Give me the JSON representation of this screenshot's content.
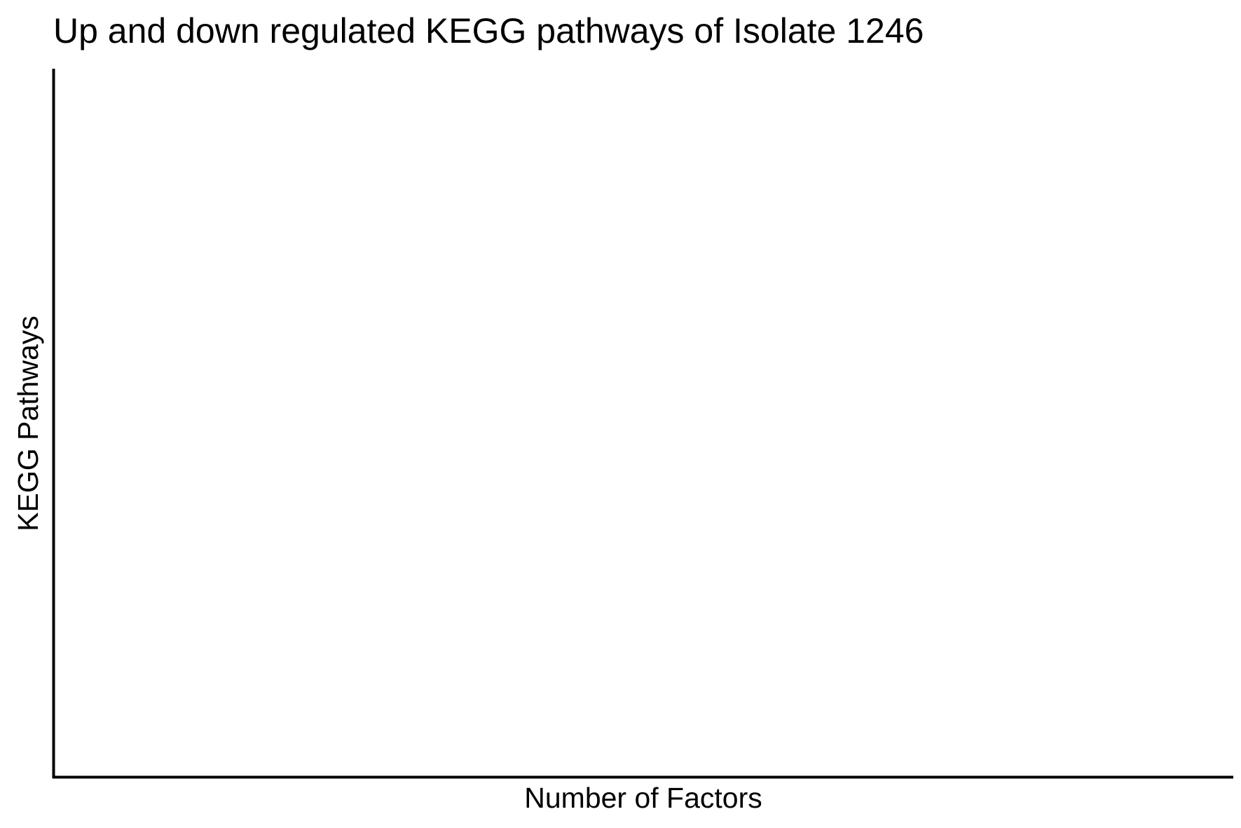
{
  "chart_data": {
    "type": "bar",
    "title": "Up and down regulated KEGG pathways of Isolate 1246",
    "xlabel": "Number of Factors",
    "ylabel": "KEGG Pathways",
    "categories": [],
    "series": [],
    "grid": false,
    "legend": "none"
  },
  "colors": {
    "background": "#ffffff",
    "axis": "#000000",
    "text": "#000000"
  }
}
